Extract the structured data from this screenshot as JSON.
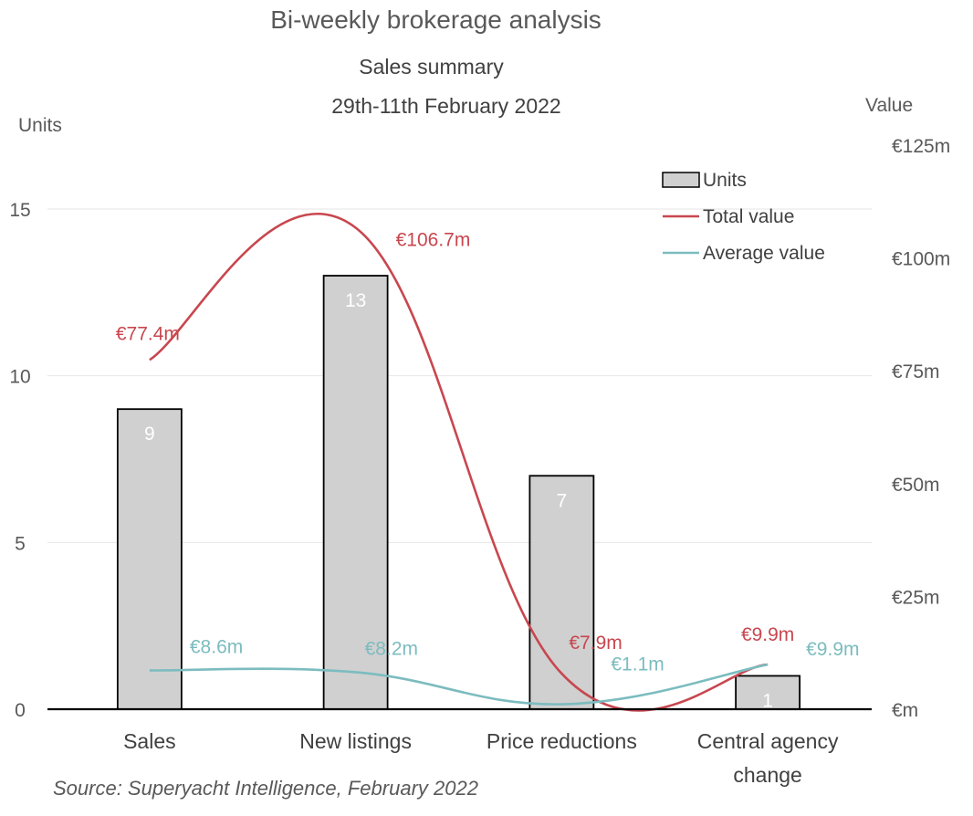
{
  "chart_data": {
    "type": "bar",
    "title": "Bi-weekly brokerage analysis",
    "subtitle": "Sales summary",
    "date_range": "29th-11th February 2022",
    "categories": [
      "Sales",
      "New listings",
      "Price reductions",
      "Central agency change"
    ],
    "y_left": {
      "title": "Units",
      "ylim": [
        0,
        17
      ],
      "ticks": [
        0,
        5,
        10,
        15
      ],
      "tick_labels": [
        "0",
        "5",
        "10",
        "15"
      ]
    },
    "y_right": {
      "title": "Value",
      "ylim": [
        0,
        125
      ],
      "ticks": [
        0,
        25,
        50,
        75,
        100,
        125
      ],
      "tick_labels": [
        "€m",
        "€25m",
        "€50m",
        "€75m",
        "€100m",
        "€125m"
      ]
    },
    "grid": true,
    "legend_position": "top-right",
    "series": [
      {
        "name": "Units",
        "type": "bar",
        "axis": "left",
        "values": [
          9,
          13,
          7,
          1
        ],
        "labels": [
          "9",
          "13",
          "7",
          "1"
        ],
        "color": "#d0d0d0"
      },
      {
        "name": "Total value",
        "type": "line",
        "axis": "right",
        "values": [
          77.4,
          106.7,
          7.9,
          9.9
        ],
        "labels": [
          "€77.4m",
          "€106.7m",
          "€7.9m",
          "€9.9m"
        ],
        "color": "#c8474f"
      },
      {
        "name": "Average value",
        "type": "line",
        "axis": "right",
        "values": [
          8.6,
          8.2,
          1.1,
          9.9
        ],
        "labels": [
          "€8.6m",
          "€8.2m",
          "€1.1m",
          "€9.9m"
        ],
        "color": "#7cbcbf"
      }
    ],
    "source": "Source: Superyacht Intelligence, February 2022"
  }
}
